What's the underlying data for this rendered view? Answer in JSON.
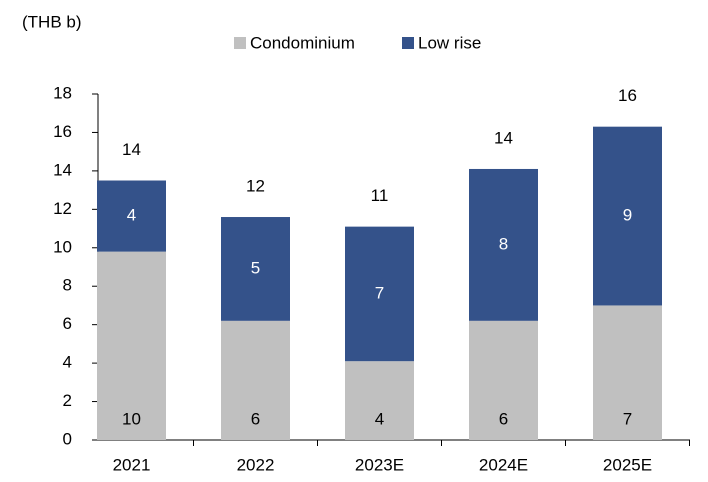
{
  "chart_data": {
    "type": "stacked_bar",
    "unit_label": "(THB b)",
    "categories": [
      "2021",
      "2022",
      "2023E",
      "2024E",
      "2025E"
    ],
    "series": [
      {
        "name": "Condominium",
        "color": "#c0c0c0",
        "values": [
          9.8,
          6.2,
          4.1,
          6.2,
          7.0
        ],
        "value_labels": [
          "10",
          "6",
          "4",
          "6",
          "7"
        ]
      },
      {
        "name": "Low rise",
        "color": "#34528a",
        "values": [
          3.7,
          5.4,
          7.0,
          7.9,
          9.3
        ],
        "value_labels": [
          "4",
          "5",
          "7",
          "8",
          "9"
        ]
      }
    ],
    "total_labels": [
      "14",
      "12",
      "11",
      "14",
      "16"
    ],
    "ylim": [
      0,
      18
    ],
    "yticks": [
      0,
      2,
      4,
      6,
      8,
      10,
      12,
      14,
      16,
      18
    ],
    "grid": false,
    "legend": "top"
  }
}
